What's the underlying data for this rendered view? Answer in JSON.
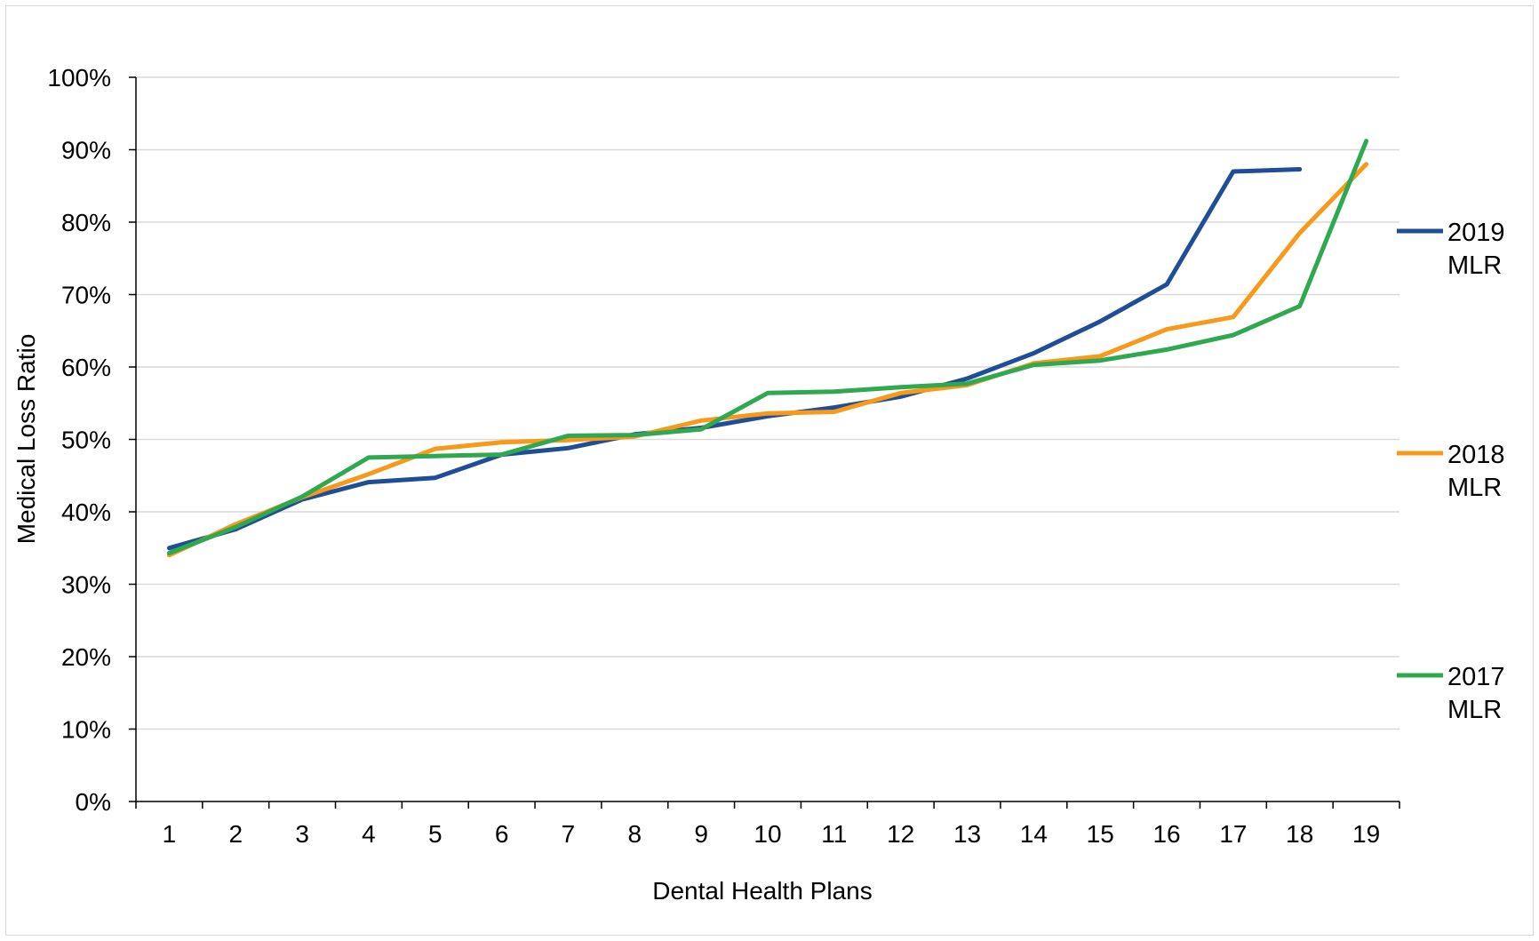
{
  "chart_data": {
    "type": "line",
    "title": "",
    "xlabel": "Dental Health Plans",
    "ylabel": "Medical Loss Ratio",
    "x": [
      1,
      2,
      3,
      4,
      5,
      6,
      7,
      8,
      9,
      10,
      11,
      12,
      13,
      14,
      15,
      16,
      17,
      18,
      19
    ],
    "x_tick_labels": [
      "1",
      "2",
      "3",
      "4",
      "5",
      "6",
      "7",
      "8",
      "9",
      "10",
      "11",
      "12",
      "13",
      "14",
      "15",
      "16",
      "17",
      "18",
      "19"
    ],
    "ylim": [
      0,
      100
    ],
    "y_ticks": [
      0,
      10,
      20,
      30,
      40,
      50,
      60,
      70,
      80,
      90,
      100
    ],
    "y_tick_labels": [
      "0%",
      "10%",
      "20%",
      "30%",
      "40%",
      "50%",
      "60%",
      "70%",
      "80%",
      "90%",
      "100%"
    ],
    "grid": true,
    "legend_placement": "right",
    "series": [
      {
        "name": "2019 MLR",
        "label_lines": [
          "2019",
          "MLR"
        ],
        "color": "#1f4e96",
        "values": [
          35.0,
          37.6,
          41.7,
          44.1,
          44.7,
          47.9,
          48.8,
          50.7,
          51.6,
          53.2,
          54.4,
          55.9,
          58.4,
          61.9,
          66.3,
          71.4,
          87.0,
          87.3,
          null
        ]
      },
      {
        "name": "2018 MLR",
        "label_lines": [
          "2018",
          "MLR"
        ],
        "color": "#f79a1b",
        "values": [
          34.0,
          38.3,
          42.0,
          45.2,
          48.7,
          49.6,
          49.9,
          50.4,
          52.6,
          53.6,
          53.8,
          56.4,
          57.5,
          60.5,
          61.5,
          65.2,
          66.9,
          78.5,
          88.0
        ]
      },
      {
        "name": "2017 MLR",
        "label_lines": [
          "2017",
          "MLR"
        ],
        "color": "#2fa84f",
        "values": [
          34.3,
          37.9,
          42.1,
          47.5,
          47.7,
          47.9,
          50.5,
          50.6,
          51.4,
          56.4,
          56.6,
          57.2,
          57.7,
          60.3,
          60.9,
          62.4,
          64.4,
          68.4,
          91.2
        ]
      }
    ]
  }
}
